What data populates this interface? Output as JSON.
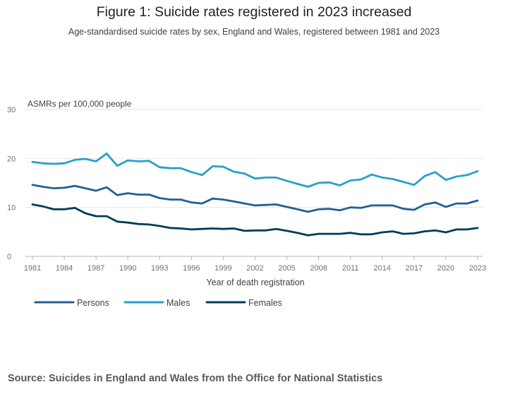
{
  "header": {
    "title": "Figure 1: Suicide rates registered in 2023 increased",
    "subtitle": "Age-standardised suicide rates by sex, England and Wales, registered between 1981 and 2023"
  },
  "footer": {
    "source": "Source: Suicides in England and Wales from the Office for National Statistics"
  },
  "colors": {
    "persons": "#206095",
    "males": "#27a0cc",
    "females": "#003c57",
    "grid": "#e6e6e6",
    "axis_text": "#707071"
  },
  "chart_data": {
    "type": "line",
    "title": "Figure 1: Suicide rates registered in 2023 increased",
    "subtitle": "Age-standardised suicide rates by sex, England and Wales, registered between 1981 and 2023",
    "ylabel": "ASMRs per 100,000 people",
    "xlabel": "Year of death registration",
    "ylim": [
      0,
      30
    ],
    "yticks": [
      0,
      10,
      20,
      30
    ],
    "xticks": [
      1981,
      1984,
      1987,
      1990,
      1993,
      1996,
      1999,
      2002,
      2005,
      2008,
      2011,
      2014,
      2017,
      2020,
      2023
    ],
    "grid": true,
    "legend_position": "bottom-left",
    "x": [
      1981,
      1982,
      1983,
      1984,
      1985,
      1986,
      1987,
      1988,
      1989,
      1990,
      1991,
      1992,
      1993,
      1994,
      1995,
      1996,
      1997,
      1998,
      1999,
      2000,
      2001,
      2002,
      2003,
      2004,
      2005,
      2006,
      2007,
      2008,
      2009,
      2010,
      2011,
      2012,
      2013,
      2014,
      2015,
      2016,
      2017,
      2018,
      2019,
      2020,
      2021,
      2022,
      2023
    ],
    "series": [
      {
        "name": "Persons",
        "values": [
          14.6,
          14.2,
          13.9,
          14.0,
          14.4,
          13.9,
          13.4,
          14.1,
          12.5,
          12.9,
          12.6,
          12.6,
          11.9,
          11.6,
          11.6,
          11.0,
          10.8,
          11.8,
          11.6,
          11.2,
          10.8,
          10.4,
          10.5,
          10.6,
          10.1,
          9.6,
          9.1,
          9.6,
          9.7,
          9.4,
          10.0,
          9.9,
          10.4,
          10.4,
          10.4,
          9.7,
          9.5,
          10.6,
          11.0,
          10.1,
          10.8,
          10.8,
          11.4
        ]
      },
      {
        "name": "Males",
        "values": [
          19.3,
          19.0,
          18.9,
          19.0,
          19.7,
          19.9,
          19.4,
          21.0,
          18.5,
          19.6,
          19.4,
          19.5,
          18.2,
          18.0,
          18.0,
          17.2,
          16.6,
          18.4,
          18.3,
          17.3,
          16.9,
          15.9,
          16.1,
          16.1,
          15.4,
          14.8,
          14.2,
          15.0,
          15.1,
          14.5,
          15.5,
          15.7,
          16.7,
          16.1,
          15.8,
          15.2,
          14.6,
          16.4,
          17.2,
          15.6,
          16.3,
          16.6,
          17.4
        ]
      },
      {
        "name": "Females",
        "values": [
          10.6,
          10.2,
          9.6,
          9.6,
          9.9,
          8.8,
          8.2,
          8.2,
          7.1,
          6.9,
          6.6,
          6.5,
          6.2,
          5.8,
          5.7,
          5.5,
          5.6,
          5.7,
          5.6,
          5.7,
          5.2,
          5.3,
          5.3,
          5.6,
          5.2,
          4.8,
          4.3,
          4.6,
          4.6,
          4.6,
          4.8,
          4.5,
          4.5,
          4.9,
          5.1,
          4.6,
          4.7,
          5.1,
          5.3,
          4.9,
          5.5,
          5.5,
          5.8
        ]
      }
    ]
  }
}
